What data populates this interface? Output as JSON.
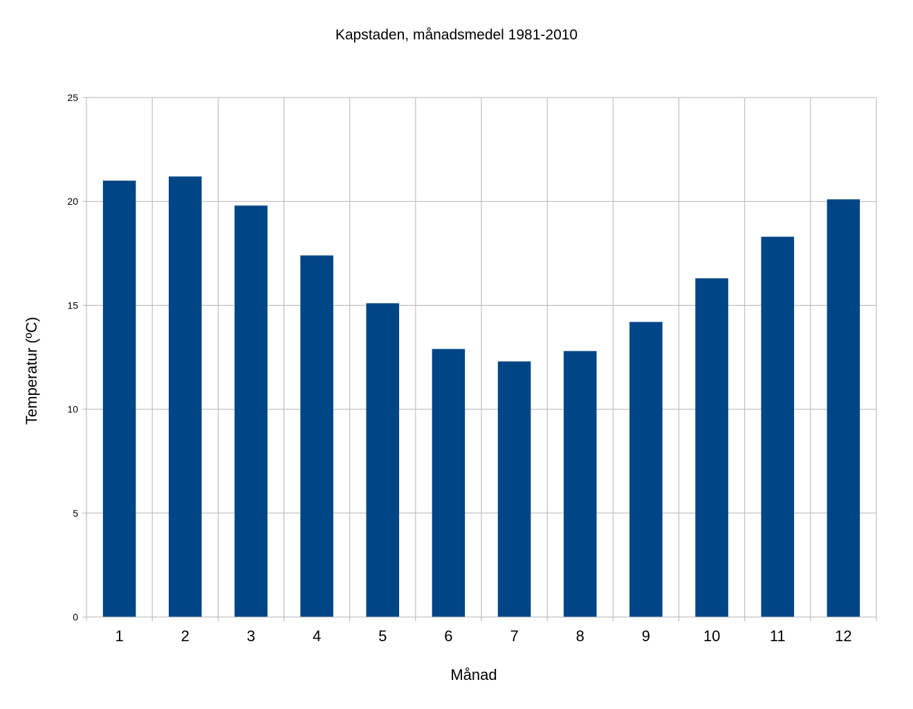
{
  "chart_data": {
    "type": "bar",
    "title": "Kapstaden, månadsmedel 1981-2010",
    "ylabel": "Temperatur (ºC)",
    "xlabel": "Månad",
    "categories": [
      "1",
      "2",
      "3",
      "4",
      "5",
      "6",
      "7",
      "8",
      "9",
      "10",
      "11",
      "12"
    ],
    "values": [
      21.0,
      21.2,
      19.8,
      17.4,
      15.1,
      12.9,
      12.3,
      12.8,
      14.2,
      16.3,
      18.3,
      20.1
    ],
    "ylim": [
      0,
      25
    ],
    "yticks": [
      "0",
      "5",
      "10",
      "15",
      "20",
      "25"
    ],
    "grid": true,
    "legend": "none",
    "colors": {
      "bar": "#004586",
      "grid": "#b3b3b3"
    }
  }
}
